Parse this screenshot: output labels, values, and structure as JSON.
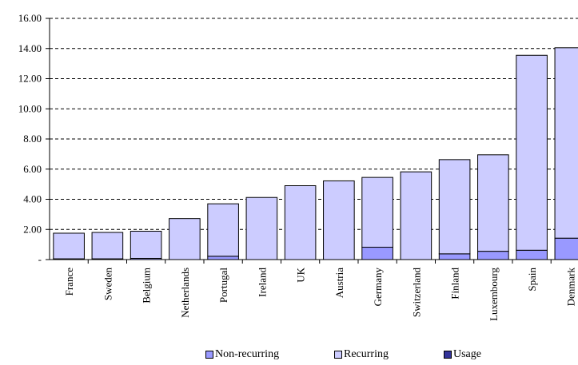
{
  "chart_data": {
    "type": "bar",
    "stacked": true,
    "categories": [
      "France",
      "Sweden",
      "Belgium",
      "Netherlands",
      "Portugal",
      "Ireland",
      "UK",
      "Austria",
      "Germany",
      "Switzerland",
      "Finland",
      "Luxembourg",
      "Spain",
      "Denmark"
    ],
    "series": [
      {
        "name": "Non-recurring",
        "color": "#9999ff",
        "values": [
          0.05,
          0.05,
          0.08,
          0.0,
          0.22,
          0.0,
          0.0,
          0.0,
          0.82,
          0.0,
          0.38,
          0.55,
          0.62,
          1.42
        ]
      },
      {
        "name": "Recurring",
        "color": "#ccccff",
        "values": [
          1.7,
          1.75,
          1.8,
          2.72,
          3.48,
          4.12,
          4.9,
          5.22,
          4.63,
          5.82,
          6.25,
          6.4,
          12.93,
          12.63
        ]
      },
      {
        "name": "Usage",
        "color": "#333399",
        "values": [
          0,
          0,
          0,
          0,
          0,
          0,
          0,
          0,
          0,
          0,
          0,
          0,
          0,
          0
        ]
      }
    ],
    "ylim": [
      0,
      16
    ],
    "yticks": [
      "-",
      "2.00",
      "4.00",
      "6.00",
      "8.00",
      "10.00",
      "12.00",
      "14.00",
      "16.00"
    ],
    "grid": true,
    "legend_position": "bottom"
  }
}
